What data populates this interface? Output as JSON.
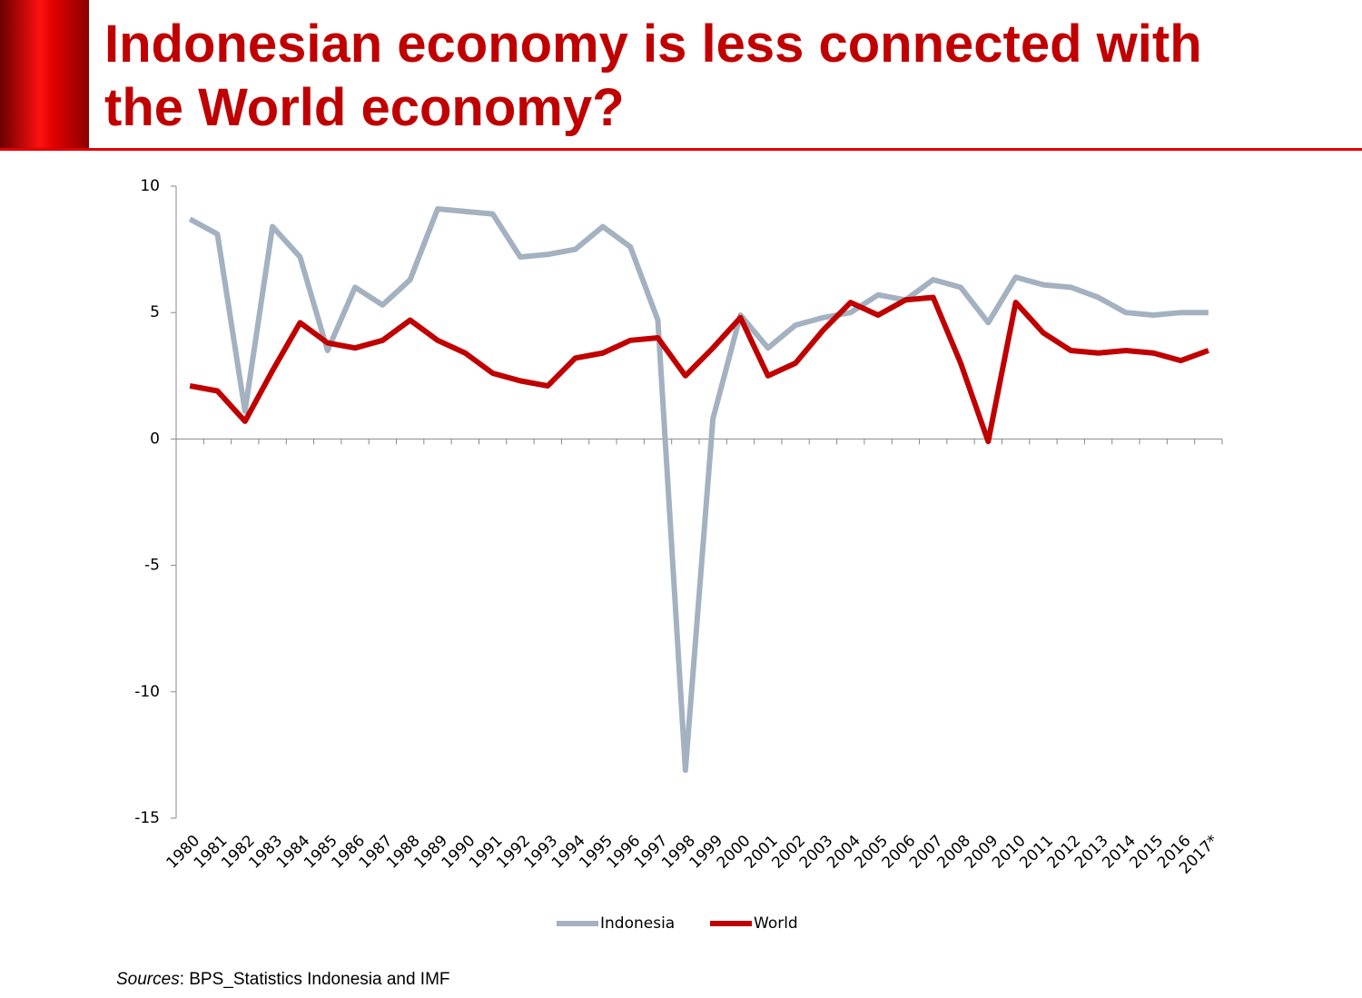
{
  "slide": {
    "title": [
      "Indonesian economy is less connected with",
      "the World economy?"
    ],
    "source_label": "Sources",
    "source_text": ": BPS_Statistics Indonesia and IMF"
  },
  "chart_data": {
    "type": "line",
    "categories": [
      "1980",
      "1981",
      "1982",
      "1983",
      "1984",
      "1985",
      "1986",
      "1987",
      "1988",
      "1989",
      "1990",
      "1991",
      "1992",
      "1993",
      "1994",
      "1995",
      "1996",
      "1997",
      "1998",
      "1999",
      "2000",
      "2001",
      "2002",
      "2003",
      "2004",
      "2005",
      "2006",
      "2007",
      "2008",
      "2009",
      "2010",
      "2011",
      "2012",
      "2013",
      "2014",
      "2015",
      "2016",
      "2017*"
    ],
    "series": [
      {
        "name": "Indonesia",
        "color": "#a3b1c0",
        "values": [
          8.7,
          8.1,
          1.1,
          8.4,
          7.2,
          3.5,
          6.0,
          5.3,
          6.3,
          9.1,
          9.0,
          8.9,
          7.2,
          7.3,
          7.5,
          8.4,
          7.6,
          4.7,
          -13.1,
          0.8,
          4.9,
          3.6,
          4.5,
          4.8,
          5.0,
          5.7,
          5.5,
          6.3,
          6.0,
          4.6,
          6.4,
          6.1,
          6.0,
          5.6,
          5.0,
          4.9,
          5.0,
          5.0
        ]
      },
      {
        "name": "World",
        "color": "#c00000",
        "values": [
          2.1,
          1.9,
          0.7,
          2.7,
          4.6,
          3.8,
          3.6,
          3.9,
          4.7,
          3.9,
          3.4,
          2.6,
          2.3,
          2.1,
          3.2,
          3.4,
          3.9,
          4.0,
          2.5,
          3.6,
          4.8,
          2.5,
          3.0,
          4.3,
          5.4,
          4.9,
          5.5,
          5.6,
          3.0,
          -0.1,
          5.4,
          4.2,
          3.5,
          3.4,
          3.5,
          3.4,
          3.1,
          3.5
        ]
      }
    ],
    "ylim": [
      -15,
      10
    ],
    "yticks": [
      -15,
      -10,
      -5,
      0,
      5,
      10
    ],
    "grid": false,
    "legend": "bottom"
  }
}
